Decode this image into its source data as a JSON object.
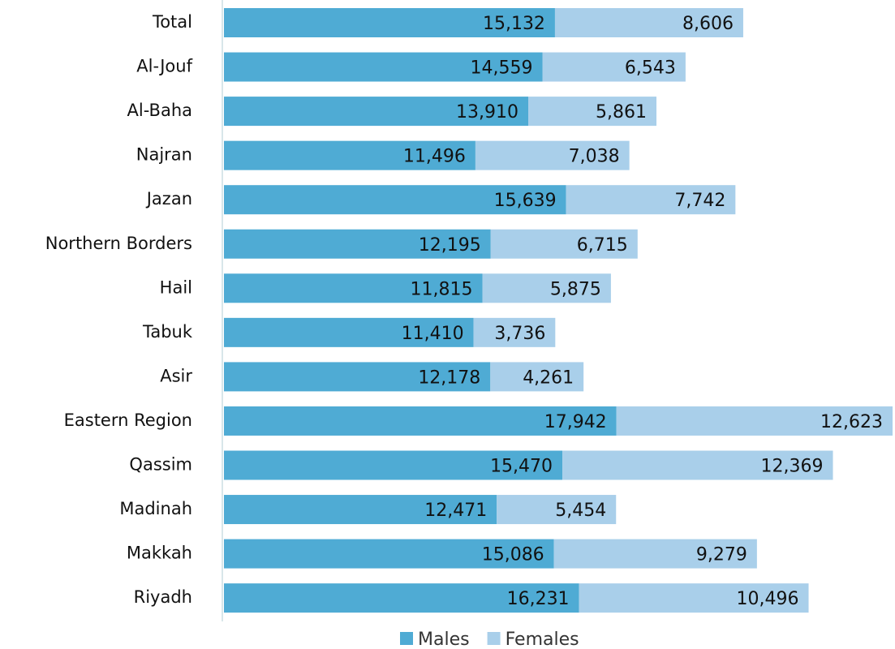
{
  "chart_data": {
    "type": "bar",
    "orientation": "horizontal",
    "stacked": true,
    "legend": "bottom",
    "categories": [
      "Total",
      "Al-Jouf",
      "Al-Baha",
      "Najran",
      "Jazan",
      "Northern Borders",
      "Hail",
      "Tabuk",
      "Asir",
      "Eastern Region",
      "Qassim",
      "Madinah",
      "Makkah",
      "Riyadh"
    ],
    "series": [
      {
        "name": "Males",
        "color": "#4fabd4",
        "values": [
          15132,
          14559,
          13910,
          11496,
          15639,
          12195,
          11815,
          11410,
          12178,
          17942,
          15470,
          12471,
          15086,
          16231
        ],
        "value_labels": [
          "15,132",
          "14,559",
          "13,910",
          "11,496",
          "15,639",
          "12,195",
          "11,815",
          "11,410",
          "12,178",
          "17,942",
          "15,470",
          "12,471",
          "15,086",
          "16,231"
        ]
      },
      {
        "name": "Females",
        "color": "#a9cfea",
        "values": [
          8606,
          6543,
          5861,
          7038,
          7742,
          6715,
          5875,
          3736,
          4261,
          12623,
          12369,
          5454,
          9279,
          10496
        ],
        "value_labels": [
          "8,606",
          "6,543",
          "5,861",
          "7,038",
          "7,742",
          "6,715",
          "5,875",
          "3,736",
          "4,261",
          "12,623",
          "12,369",
          "5,454",
          "9,279",
          "10,496"
        ]
      }
    ]
  }
}
